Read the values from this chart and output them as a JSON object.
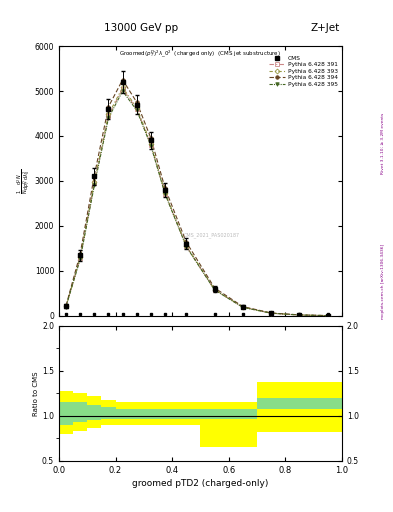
{
  "title_top": "13000 GeV pp",
  "title_right": "Z+Jet",
  "xlabel": "groomed pTD2 (charged-only)",
  "ylabel_rotated": "1/N dN/d(groomed pTD2)",
  "right_label1": "Rivet 3.1.10; ≥ 3.2M events",
  "right_label2": "mcplots.cern.ch [arXiv:1306.3436]",
  "watermark": "CMS_2021_PAS020187",
  "plot_subtitle": "Groomed(p_{T}^{D})^{2}\\lambda_{0}^{2}  (charged only)  (CMS jet substructure)",
  "x_data": [
    0.025,
    0.075,
    0.125,
    0.175,
    0.225,
    0.275,
    0.325,
    0.375,
    0.45,
    0.55,
    0.65,
    0.75,
    0.85,
    0.95
  ],
  "cms_y": [
    220,
    1350,
    3100,
    4600,
    5200,
    4700,
    3900,
    2800,
    1600,
    600,
    200,
    60,
    20,
    5
  ],
  "cms_yerr": [
    40,
    120,
    180,
    220,
    240,
    220,
    190,
    160,
    120,
    70,
    35,
    15,
    6,
    2
  ],
  "p391_y": [
    210,
    1280,
    2950,
    4450,
    5050,
    4600,
    3800,
    2720,
    1550,
    580,
    190,
    58,
    18,
    4
  ],
  "p393_y": [
    215,
    1300,
    2980,
    4480,
    5080,
    4630,
    3830,
    2740,
    1560,
    585,
    192,
    59,
    19,
    4
  ],
  "p394_y": [
    225,
    1380,
    3120,
    4650,
    5250,
    4750,
    3950,
    2840,
    1640,
    620,
    205,
    63,
    21,
    5
  ],
  "p395_y": [
    205,
    1260,
    2900,
    4400,
    5000,
    4570,
    3780,
    2710,
    1540,
    575,
    188,
    57,
    18,
    4
  ],
  "color_391": "#cc8888",
  "color_393": "#999944",
  "color_394": "#664422",
  "color_395": "#446622",
  "ratio_x_edges": [
    0.0,
    0.05,
    0.1,
    0.15,
    0.2,
    0.3,
    0.4,
    0.5,
    0.7,
    1.0
  ],
  "ratio_green_lo": [
    0.9,
    0.93,
    0.95,
    0.97,
    0.97,
    0.97,
    0.97,
    0.97,
    1.08,
    1.08
  ],
  "ratio_green_hi": [
    1.15,
    1.15,
    1.12,
    1.1,
    1.08,
    1.08,
    1.08,
    1.08,
    1.2,
    1.2
  ],
  "ratio_yellow_lo": [
    0.8,
    0.83,
    0.87,
    0.9,
    0.9,
    0.9,
    0.9,
    0.65,
    0.82,
    0.82
  ],
  "ratio_yellow_hi": [
    1.28,
    1.25,
    1.22,
    1.18,
    1.15,
    1.15,
    1.15,
    1.15,
    1.38,
    1.38
  ],
  "ylim_main": [
    0,
    6000
  ],
  "ylim_ratio": [
    0.5,
    2.0
  ],
  "yticks_main": [
    0,
    1000,
    2000,
    3000,
    4000,
    5000,
    6000
  ],
  "yticks_ratio": [
    0.5,
    1.0,
    1.5,
    2.0
  ],
  "xlim": [
    0.0,
    1.0
  ]
}
